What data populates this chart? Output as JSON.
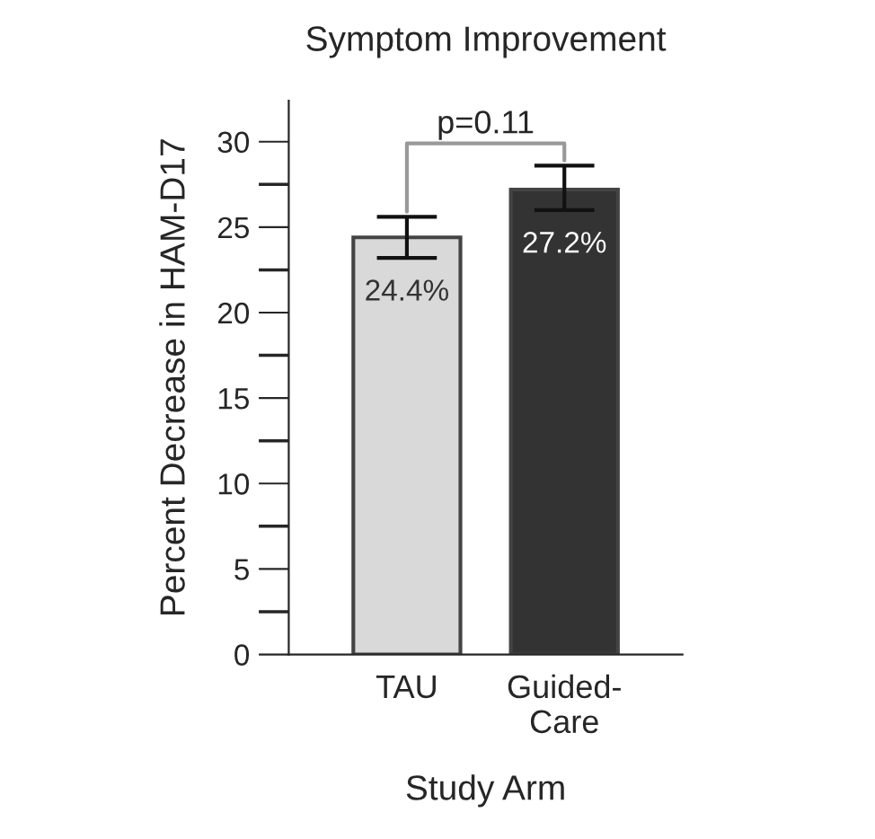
{
  "chart_data": {
    "type": "bar",
    "title": "Symptom Improvement",
    "xlabel": "Study Arm",
    "ylabel": "Percent Decrease in HAM-D17",
    "categories": [
      "TAU",
      "Guided-\nCare"
    ],
    "values": [
      24.4,
      27.2
    ],
    "colors": [
      "#d9d9d9",
      "#333333"
    ],
    "errors": [
      [
        23.2,
        25.6
      ],
      [
        26.0,
        28.6
      ]
    ],
    "value_labels": [
      "24.4%",
      "27.2%"
    ],
    "ylim": [
      0,
      32.4
    ],
    "yticks": [
      0,
      5,
      10,
      15,
      20,
      25,
      30
    ],
    "annotations": [
      "p=0.11"
    ],
    "grid": false,
    "legend": false
  }
}
